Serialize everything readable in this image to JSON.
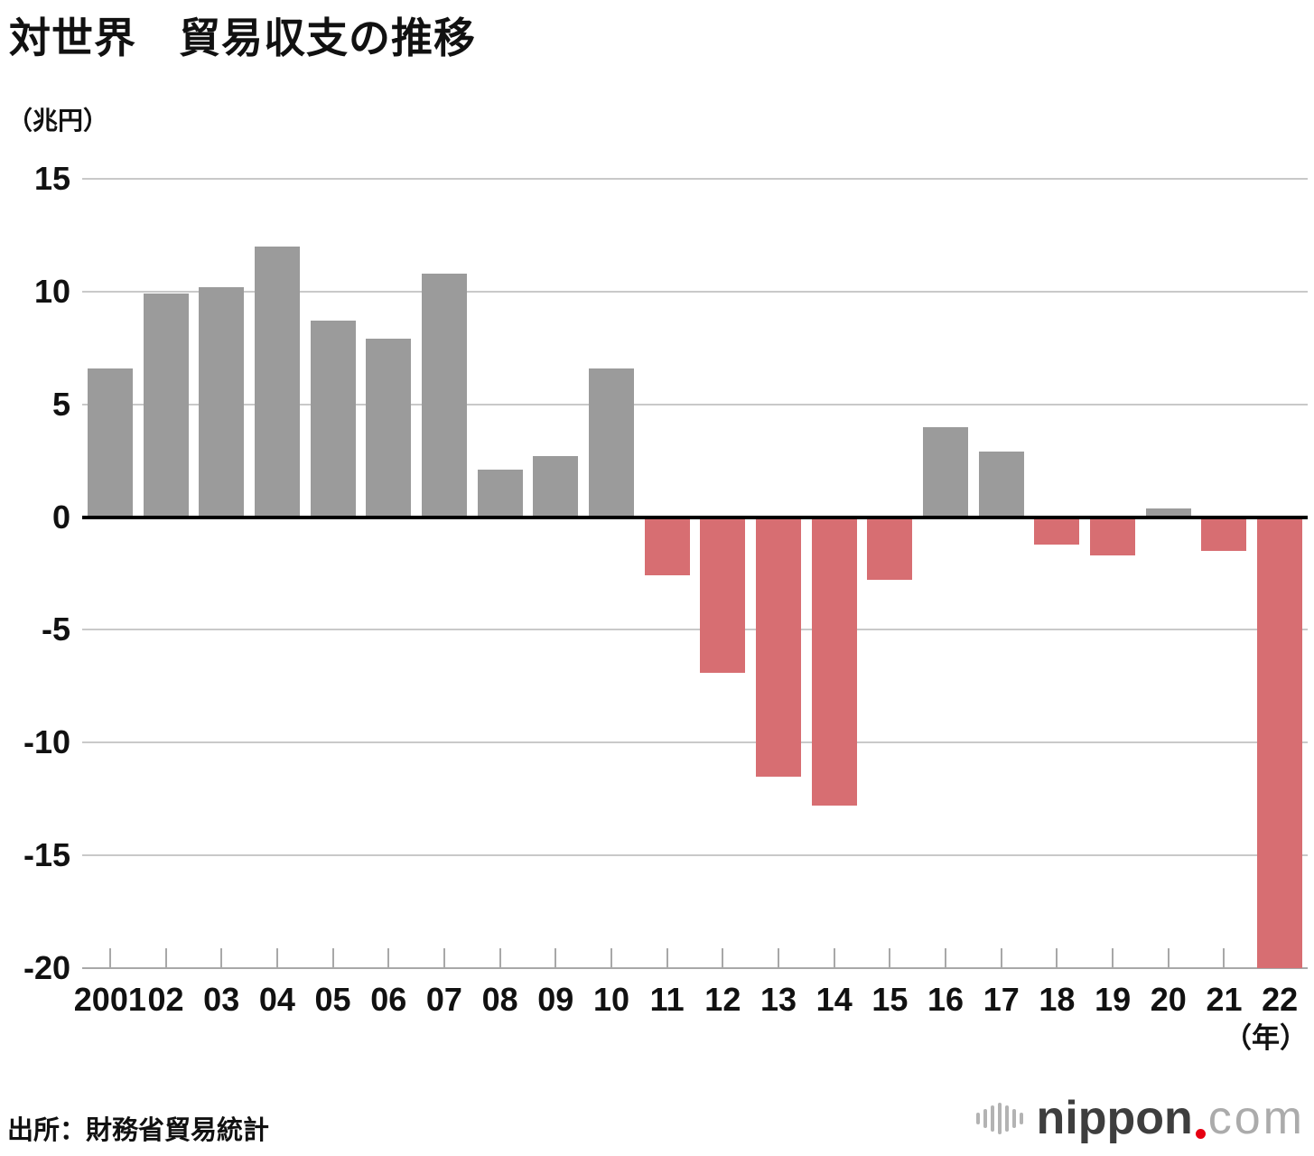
{
  "title": "対世界　貿易収支の推移",
  "unit_label": "（兆円）",
  "year_axis_label": "（年）",
  "source": "出所：財務省貿易統計",
  "logo": {
    "name": "nippon.com",
    "text_main": "nippon",
    "dot": ".",
    "text_suffix": "com"
  },
  "colors": {
    "positive_bar": "#9b9b9b",
    "negative_bar": "#d76e72",
    "gridline": "#c9c9c9",
    "zero_line": "#000000",
    "baseline": "#a8a8a8",
    "tick": "#a8a8a8",
    "text": "#111111",
    "logo_mark_gray": "#b3b3b3",
    "logo_text_dark": "#3e3e3e",
    "logo_dot_red": "#e60012",
    "logo_com_gray": "#ababab"
  },
  "chart_data": {
    "type": "bar",
    "title": "対世界　貿易収支の推移",
    "ylabel": "（兆円）",
    "xlabel": "（年）",
    "ylim": [
      -20,
      15
    ],
    "yticks": [
      15,
      10,
      5,
      0,
      -5,
      -10,
      -15,
      -20
    ],
    "grid": "horizontal",
    "legend": "none",
    "categories": [
      "2001",
      "02",
      "03",
      "04",
      "05",
      "06",
      "07",
      "08",
      "09",
      "10",
      "11",
      "12",
      "13",
      "14",
      "15",
      "16",
      "17",
      "18",
      "19",
      "20",
      "21",
      "22"
    ],
    "values": [
      6.6,
      9.9,
      10.2,
      12.0,
      8.7,
      7.9,
      10.8,
      2.1,
      2.7,
      6.6,
      -2.6,
      -6.9,
      -11.5,
      -12.8,
      -2.8,
      4.0,
      2.9,
      -1.2,
      -1.7,
      0.4,
      -1.5,
      -20.0
    ],
    "positive_color_meaning": "trade surplus (gray)",
    "negative_color_meaning": "trade deficit (red)"
  }
}
